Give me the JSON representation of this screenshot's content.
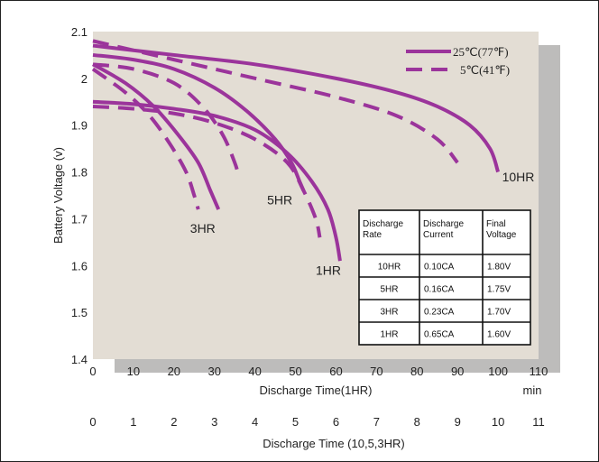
{
  "chart_data": {
    "type": "line",
    "title": "",
    "ylabel": "Battery Voltage (v)",
    "ylim": [
      1.4,
      2.1
    ],
    "yticks": [
      "1.4",
      "1.5",
      "1.6",
      "1.7",
      "1.8",
      "1.9",
      "2",
      "2.1"
    ],
    "x_axis_1hr": {
      "label": "Discharge Time(1HR)",
      "unit": "min",
      "range": [
        0,
        110
      ],
      "ticks": [
        "0",
        "10",
        "20",
        "30",
        "40",
        "50",
        "60",
        "70",
        "80",
        "90",
        "100",
        "110"
      ]
    },
    "x_axis_other": {
      "label": "Discharge Time (10,5,3HR)",
      "range": [
        0,
        11
      ],
      "ticks": [
        "0",
        "1",
        "2",
        "3",
        "4",
        "5",
        "6",
        "7",
        "8",
        "9",
        "10",
        "11"
      ]
    },
    "legend": {
      "position": "top-right",
      "items": [
        {
          "label": "25℃(77℉)",
          "style": "solid"
        },
        {
          "label": "5℃(41℉)",
          "style": "dashed"
        }
      ]
    },
    "color": "#9b349b",
    "series": [
      {
        "name": "10HR",
        "temperature": "25℃(77℉)",
        "axis": "hours",
        "x": [
          0,
          2,
          4,
          6,
          7.5,
          8.5,
          9.3,
          9.8,
          10.0
        ],
        "y": [
          2.07,
          2.05,
          2.03,
          2.0,
          1.97,
          1.94,
          1.9,
          1.85,
          1.8
        ]
      },
      {
        "name": "10HR",
        "temperature": "5℃(41℉)",
        "axis": "hours",
        "x": [
          0,
          2,
          4,
          6,
          7.5,
          8.5,
          9.0
        ],
        "y": [
          2.08,
          2.04,
          2.0,
          1.96,
          1.92,
          1.87,
          1.82
        ]
      },
      {
        "name": "5HR",
        "temperature": "25℃(77℉)",
        "axis": "hours",
        "x": [
          0,
          1,
          2,
          3,
          3.8,
          4.5,
          4.9,
          5.1,
          5.2
        ],
        "y": [
          2.05,
          2.04,
          2.02,
          1.98,
          1.93,
          1.87,
          1.82,
          1.78,
          1.76
        ]
      },
      {
        "name": "5HR",
        "temperature": "5℃(41℉)",
        "axis": "hours",
        "x": [
          0,
          1,
          2,
          2.7,
          3.2,
          3.5,
          3.6
        ],
        "y": [
          2.03,
          2.02,
          1.99,
          1.94,
          1.88,
          1.82,
          1.79
        ]
      },
      {
        "name": "3HR",
        "temperature": "25℃(77℉)",
        "axis": "hours",
        "x": [
          0,
          0.8,
          1.5,
          2.1,
          2.6,
          2.9,
          3.1
        ],
        "y": [
          2.03,
          1.99,
          1.94,
          1.88,
          1.82,
          1.76,
          1.72
        ]
      },
      {
        "name": "3HR",
        "temperature": "5℃(41℉)",
        "axis": "hours",
        "x": [
          0,
          0.8,
          1.4,
          1.9,
          2.3,
          2.5,
          2.6
        ],
        "y": [
          2.02,
          1.97,
          1.92,
          1.86,
          1.8,
          1.75,
          1.72
        ]
      },
      {
        "name": "1HR",
        "temperature": "25℃(77℉)",
        "axis": "minutes",
        "x": [
          0,
          10,
          20,
          30,
          40,
          48,
          54,
          58,
          60,
          61
        ],
        "y": [
          1.95,
          1.945,
          1.935,
          1.92,
          1.89,
          1.84,
          1.78,
          1.72,
          1.66,
          1.61
        ]
      },
      {
        "name": "1HR",
        "temperature": "5℃(41℉)",
        "axis": "minutes",
        "x": [
          0,
          10,
          20,
          30,
          40,
          48,
          52,
          55,
          56
        ],
        "y": [
          1.94,
          1.935,
          1.925,
          1.905,
          1.87,
          1.82,
          1.76,
          1.7,
          1.66
        ]
      }
    ],
    "curve_labels": [
      {
        "text": "10HR",
        "x_hours": 10.1,
        "y": 1.79
      },
      {
        "text": "5HR",
        "x_hours": 4.3,
        "y": 1.74
      },
      {
        "text": "3HR",
        "x_hours": 2.4,
        "y": 1.68
      },
      {
        "text": "1HR",
        "x_hours": 5.5,
        "y": 1.59
      }
    ],
    "table": {
      "headers": [
        "Discharge Rate",
        "Discharge Current",
        "Final Voltage"
      ],
      "rows": [
        [
          "10HR",
          "0.10CA",
          "1.80V"
        ],
        [
          "5HR",
          "0.16CA",
          "1.75V"
        ],
        [
          "3HR",
          "0.23CA",
          "1.70V"
        ],
        [
          "1HR",
          "0.65CA",
          "1.60V"
        ]
      ]
    }
  }
}
